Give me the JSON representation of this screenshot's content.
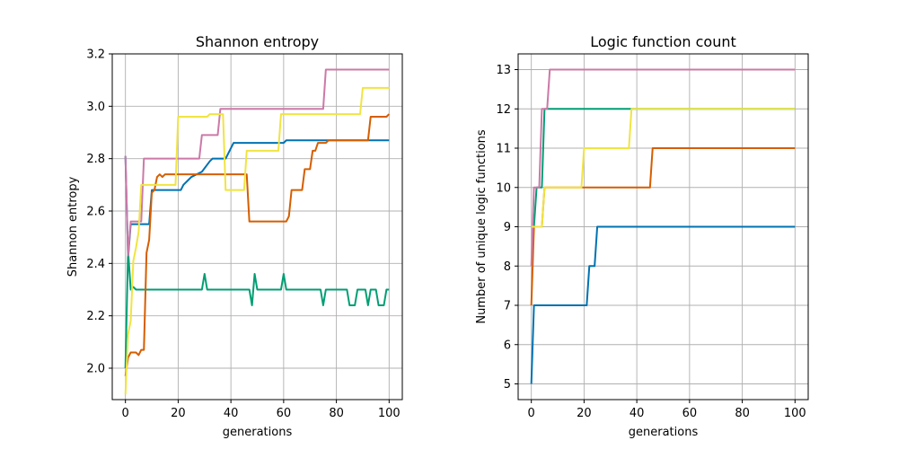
{
  "chart_data": [
    {
      "type": "line",
      "title": "Shannon entropy",
      "xlabel": "generations",
      "ylabel": "Shannon entropy",
      "xlim": [
        -5,
        105
      ],
      "ylim": [
        1.88,
        3.2
      ],
      "xticks": [
        0,
        20,
        40,
        60,
        80,
        100
      ],
      "yticks": [
        2.0,
        2.2,
        2.4,
        2.6,
        2.8,
        3.0,
        3.2
      ],
      "ytick_decimals": 1,
      "grid": true,
      "series": [
        {
          "color": "#0072b2",
          "points": [
            [
              0,
              2.81
            ],
            [
              1,
              2.42
            ],
            [
              2,
              2.55
            ],
            [
              9,
              2.55
            ],
            [
              10,
              2.68
            ],
            [
              21,
              2.68
            ],
            [
              22,
              2.7
            ],
            [
              24,
              2.72
            ],
            [
              25,
              2.73
            ],
            [
              29,
              2.75
            ],
            [
              32,
              2.79
            ],
            [
              33,
              2.8
            ],
            [
              38,
              2.8
            ],
            [
              39,
              2.82
            ],
            [
              41,
              2.86
            ],
            [
              60,
              2.86
            ],
            [
              61,
              2.87
            ],
            [
              100,
              2.87
            ]
          ]
        },
        {
          "color": "#009e73",
          "points": [
            [
              0,
              2.0
            ],
            [
              1,
              2.45
            ],
            [
              2,
              2.3
            ],
            [
              3,
              2.31
            ],
            [
              4,
              2.3
            ],
            [
              29,
              2.3
            ],
            [
              30,
              2.36
            ],
            [
              31,
              2.3
            ],
            [
              47,
              2.3
            ],
            [
              48,
              2.24
            ],
            [
              49,
              2.36
            ],
            [
              50,
              2.3
            ],
            [
              59,
              2.3
            ],
            [
              60,
              2.36
            ],
            [
              61,
              2.3
            ],
            [
              74,
              2.3
            ],
            [
              75,
              2.24
            ],
            [
              76,
              2.3
            ],
            [
              84,
              2.3
            ],
            [
              85,
              2.24
            ],
            [
              87,
              2.24
            ],
            [
              88,
              2.3
            ],
            [
              91,
              2.3
            ],
            [
              92,
              2.24
            ],
            [
              93,
              2.3
            ],
            [
              95,
              2.3
            ],
            [
              96,
              2.24
            ],
            [
              98,
              2.24
            ],
            [
              99,
              2.3
            ],
            [
              100,
              2.3
            ]
          ]
        },
        {
          "color": "#d55e00",
          "points": [
            [
              0,
              1.97
            ],
            [
              1,
              2.04
            ],
            [
              2,
              2.06
            ],
            [
              4,
              2.06
            ],
            [
              5,
              2.05
            ],
            [
              6,
              2.07
            ],
            [
              7,
              2.07
            ],
            [
              8,
              2.44
            ],
            [
              9,
              2.49
            ],
            [
              10,
              2.67
            ],
            [
              11,
              2.68
            ],
            [
              12,
              2.73
            ],
            [
              13,
              2.74
            ],
            [
              14,
              2.73
            ],
            [
              15,
              2.74
            ],
            [
              46,
              2.74
            ],
            [
              47,
              2.56
            ],
            [
              61,
              2.56
            ],
            [
              62,
              2.58
            ],
            [
              63,
              2.68
            ],
            [
              67,
              2.68
            ],
            [
              68,
              2.76
            ],
            [
              70,
              2.76
            ],
            [
              71,
              2.83
            ],
            [
              72,
              2.83
            ],
            [
              73,
              2.86
            ],
            [
              76,
              2.86
            ],
            [
              77,
              2.87
            ],
            [
              92,
              2.87
            ],
            [
              93,
              2.96
            ],
            [
              99,
              2.96
            ],
            [
              100,
              2.97
            ]
          ]
        },
        {
          "color": "#cc79a7",
          "points": [
            [
              0,
              2.81
            ],
            [
              1,
              2.43
            ],
            [
              2,
              2.56
            ],
            [
              6,
              2.56
            ],
            [
              7,
              2.8
            ],
            [
              28,
              2.8
            ],
            [
              29,
              2.89
            ],
            [
              35,
              2.89
            ],
            [
              36,
              2.99
            ],
            [
              75,
              2.99
            ],
            [
              76,
              3.14
            ],
            [
              100,
              3.14
            ]
          ]
        },
        {
          "color": "#f0e442",
          "points": [
            [
              0,
              1.9
            ],
            [
              1,
              2.13
            ],
            [
              2,
              2.18
            ],
            [
              3,
              2.41
            ],
            [
              4,
              2.46
            ],
            [
              5,
              2.52
            ],
            [
              6,
              2.7
            ],
            [
              19,
              2.7
            ],
            [
              20,
              2.96
            ],
            [
              31,
              2.96
            ],
            [
              32,
              2.97
            ],
            [
              37,
              2.97
            ],
            [
              38,
              2.68
            ],
            [
              45,
              2.68
            ],
            [
              46,
              2.83
            ],
            [
              58,
              2.83
            ],
            [
              59,
              2.97
            ],
            [
              89,
              2.97
            ],
            [
              90,
              3.07
            ],
            [
              100,
              3.07
            ]
          ]
        }
      ]
    },
    {
      "type": "line",
      "title": "Logic function count",
      "xlabel": "generations",
      "ylabel": "Number of unique logic functions",
      "xlim": [
        -5,
        105
      ],
      "ylim": [
        4.6,
        13.4
      ],
      "xticks": [
        0,
        20,
        40,
        60,
        80,
        100
      ],
      "yticks": [
        5,
        6,
        7,
        8,
        9,
        10,
        11,
        12,
        13
      ],
      "ytick_decimals": 0,
      "grid": true,
      "series": [
        {
          "color": "#0072b2",
          "points": [
            [
              0,
              5
            ],
            [
              1,
              7
            ],
            [
              21,
              7
            ],
            [
              22,
              8
            ],
            [
              24,
              8
            ],
            [
              25,
              9
            ],
            [
              100,
              9
            ]
          ]
        },
        {
          "color": "#009e73",
          "points": [
            [
              0,
              9
            ],
            [
              1,
              9
            ],
            [
              2,
              10
            ],
            [
              4,
              10
            ],
            [
              5,
              12
            ],
            [
              100,
              12
            ]
          ]
        },
        {
          "color": "#d55e00",
          "points": [
            [
              0,
              7
            ],
            [
              1,
              9
            ],
            [
              4,
              9
            ],
            [
              5,
              10
            ],
            [
              45,
              10
            ],
            [
              46,
              11
            ],
            [
              100,
              11
            ]
          ]
        },
        {
          "color": "#cc79a7",
          "points": [
            [
              0,
              8
            ],
            [
              1,
              10
            ],
            [
              3,
              10
            ],
            [
              4,
              12
            ],
            [
              6,
              12
            ],
            [
              7,
              13
            ],
            [
              100,
              13
            ]
          ]
        },
        {
          "color": "#f0e442",
          "points": [
            [
              0,
              9
            ],
            [
              4,
              9
            ],
            [
              5,
              10
            ],
            [
              19,
              10
            ],
            [
              20,
              11
            ],
            [
              37,
              11
            ],
            [
              38,
              12
            ],
            [
              100,
              12
            ]
          ]
        }
      ]
    }
  ]
}
